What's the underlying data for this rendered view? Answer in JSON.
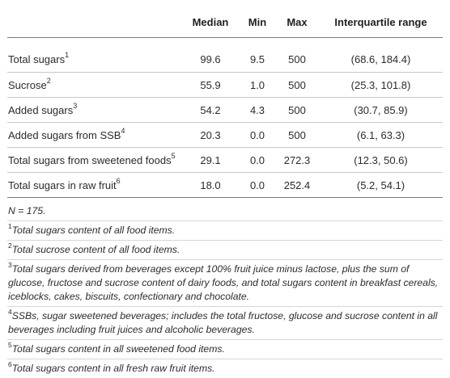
{
  "table": {
    "columns": [
      "",
      "Median",
      "Min",
      "Max",
      "Interquartile range"
    ],
    "rows": [
      {
        "label": "Total sugars",
        "sup": "1",
        "median": "99.6",
        "min": "9.5",
        "max": "500",
        "iqr": "(68.6, 184.4)"
      },
      {
        "label": "Sucrose",
        "sup": "2",
        "median": "55.9",
        "min": "1.0",
        "max": "500",
        "iqr": "(25.3, 101.8)"
      },
      {
        "label": "Added sugars",
        "sup": "3",
        "median": "54.2",
        "min": "4.3",
        "max": "500",
        "iqr": "(30.7, 85.9)"
      },
      {
        "label": "Added sugars from SSB",
        "sup": "4",
        "median": "20.3",
        "min": "0.0",
        "max": "500",
        "iqr": "(6.1, 63.3)"
      },
      {
        "label": "Total sugars from sweetened foods",
        "sup": "5",
        "median": "29.1",
        "min": "0.0",
        "max": "272.3",
        "iqr": "(12.3, 50.6)"
      },
      {
        "label": "Total sugars in raw fruit",
        "sup": "6",
        "median": "18.0",
        "min": "0.0",
        "max": "252.4",
        "iqr": "(5.2, 54.1)"
      }
    ]
  },
  "notes": [
    {
      "sup": "",
      "text": "N = 175."
    },
    {
      "sup": "1",
      "text": "Total sugars content of all food items."
    },
    {
      "sup": "2",
      "text": "Total sucrose content of all food items."
    },
    {
      "sup": "3",
      "text": "Total sugars derived from beverages except 100% fruit juice minus lactose, plus the sum of glucose, fructose and sucrose content of dairy foods, and total sugars content in breakfast cereals, iceblocks, cakes, biscuits, confectionary and chocolate."
    },
    {
      "sup": "4",
      "text": "SSBs, sugar sweetened beverages; includes the total fructose, glucose and sucrose content in all beverages including fruit juices and alcoholic beverages."
    },
    {
      "sup": "5",
      "text": "Total sugars content in all sweetened food items."
    },
    {
      "sup": "6",
      "text": "Total sugars content in all fresh raw fruit items."
    }
  ]
}
